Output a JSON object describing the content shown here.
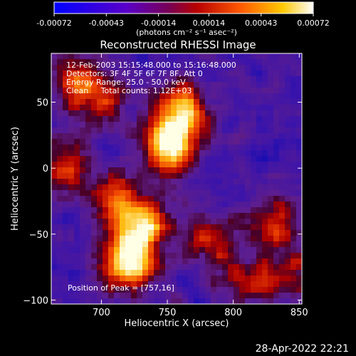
{
  "window": {
    "timestamp": "28-Apr-2022 22:21"
  },
  "colorbar": {
    "tick_labels": [
      "-0.00072",
      "-0.00043",
      "-0.00014",
      "0.00014",
      "0.00043",
      "0.00072"
    ],
    "range": [
      -0.00072,
      0.00072
    ],
    "unit_label": "(photons cm⁻² s⁻¹ asec⁻²)"
  },
  "chart_data": {
    "type": "heatmap",
    "title": "Reconstructed RHESSI Image",
    "xlabel": "Heliocentric X (arcsec)",
    "ylabel": "Heliocentric Y (arcsec)",
    "xlim": [
      662,
      852
    ],
    "ylim": [
      -103,
      87
    ],
    "x_ticks": [
      700,
      750,
      800,
      850
    ],
    "y_ticks": [
      -100,
      -50,
      0,
      50
    ],
    "info_lines": [
      "12-Feb-2003 15:15:48.000 to 15:16:48.000",
      "Detectors: 3F 4F 5F 6F 7F 8F, Att 0",
      "Energy Range: 25.0 - 50.0 keV",
      "Clean     Total counts: 1.12E+03"
    ],
    "peak_label": "Position of Peak = [757,16]",
    "peak_position": [
      757,
      16
    ],
    "grid": false,
    "colormap": "blue-purple-red-orange-yellow-white",
    "bright_sources": [
      {
        "x": 752,
        "y": 18,
        "strength": 1.0
      },
      {
        "x": 760,
        "y": 45,
        "strength": 0.75
      },
      {
        "x": 720,
        "y": -72,
        "strength": 0.95
      },
      {
        "x": 732,
        "y": -45,
        "strength": 0.8
      },
      {
        "x": 710,
        "y": -25,
        "strength": 0.6
      },
      {
        "x": 672,
        "y": 0,
        "strength": 0.55
      },
      {
        "x": 832,
        "y": -40,
        "strength": 0.5
      },
      {
        "x": 810,
        "y": -85,
        "strength": 0.45
      },
      {
        "x": 680,
        "y": 65,
        "strength": 0.5
      },
      {
        "x": 780,
        "y": -55,
        "strength": 0.45
      },
      {
        "x": 845,
        "y": -80,
        "strength": 0.4
      },
      {
        "x": 700,
        "y": 50,
        "strength": 0.45
      }
    ]
  }
}
